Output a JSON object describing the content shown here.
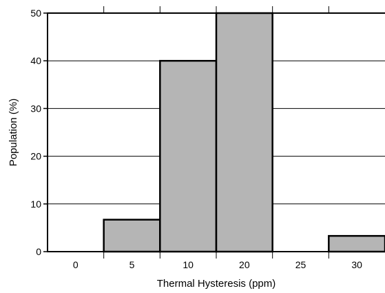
{
  "chart_data": {
    "type": "bar",
    "title": "",
    "xlabel": "Thermal Hysteresis (ppm)",
    "ylabel": "Population (%)",
    "categories": [
      "0",
      "5",
      "10",
      "20",
      "25",
      "30"
    ],
    "values": [
      0,
      6.7,
      40,
      50,
      0,
      3.3
    ],
    "ylim": [
      0,
      50
    ],
    "yticks": [
      "0",
      "10",
      "20",
      "30",
      "40",
      "50"
    ],
    "grid": true,
    "bar_color": "#b5b5b5",
    "edge_color": "#000000"
  }
}
